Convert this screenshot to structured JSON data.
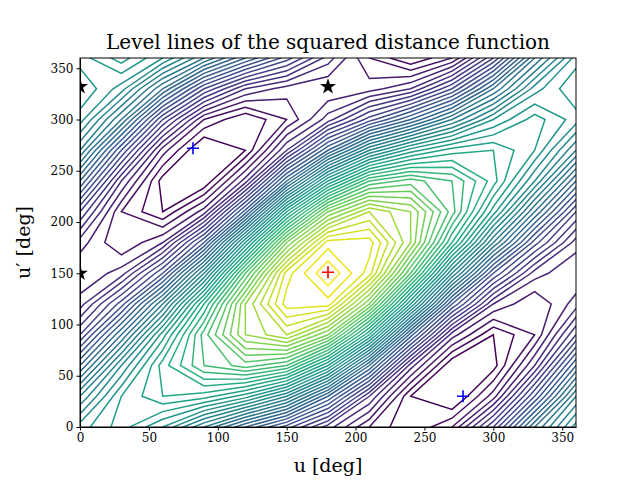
{
  "chart_data": {
    "type": "contour",
    "title": "Level lines of the squared distance function",
    "x_label": "u [deg]",
    "y_label": "u′ [deg]",
    "xlim": [
      0,
      360
    ],
    "ylim": [
      0,
      360
    ],
    "xticks": [
      0,
      50,
      100,
      150,
      200,
      250,
      300,
      350
    ],
    "yticks": [
      0,
      50,
      100,
      150,
      200,
      250,
      300,
      350
    ],
    "color": "viridis",
    "x": [
      0,
      30,
      60,
      90,
      120,
      150,
      180,
      210,
      240,
      270,
      300,
      330,
      360
    ],
    "y": [
      0,
      30,
      60,
      90,
      120,
      150,
      180,
      210,
      240,
      270,
      300,
      330,
      360
    ],
    "z": [
      [
        6.1,
        6.5,
        6.0,
        5.2,
        4.4,
        3.7,
        2.9,
        2.2,
        1.8,
        2.2,
        3.4,
        5.0,
        6.1
      ],
      [
        5.4,
        6.4,
        6.8,
        6.7,
        6.3,
        5.6,
        4.4,
        3.0,
        1.8,
        1.5,
        2.3,
        3.8,
        5.4
      ],
      [
        4.4,
        5.8,
        6.9,
        7.6,
        7.9,
        7.6,
        6.4,
        4.6,
        2.7,
        1.6,
        1.7,
        2.8,
        4.4
      ],
      [
        3.4,
        4.8,
        6.3,
        7.7,
        8.8,
        9.2,
        8.4,
        6.6,
        4.3,
        2.5,
        1.8,
        2.2,
        3.4
      ],
      [
        2.7,
        3.7,
        5.2,
        7.0,
        8.8,
        9.9,
        9.9,
        8.4,
        6.2,
        4.0,
        2.6,
        2.2,
        2.7
      ],
      [
        2.4,
        2.7,
        3.8,
        5.6,
        7.8,
        9.7,
        10.4,
        9.7,
        7.8,
        5.6,
        3.8,
        2.7,
        2.4
      ],
      [
        2.7,
        2.2,
        2.6,
        4.0,
        6.2,
        8.4,
        9.9,
        9.9,
        8.8,
        7.0,
        5.2,
        3.7,
        2.7
      ],
      [
        3.4,
        2.2,
        1.8,
        2.5,
        4.3,
        6.6,
        8.4,
        9.2,
        8.8,
        7.7,
        6.3,
        4.8,
        3.4
      ],
      [
        4.4,
        2.8,
        1.7,
        1.6,
        2.7,
        4.6,
        6.4,
        7.6,
        7.9,
        7.6,
        6.9,
        5.8,
        4.4
      ],
      [
        5.4,
        3.8,
        2.3,
        1.5,
        1.8,
        3.0,
        4.4,
        5.6,
        6.3,
        6.7,
        6.8,
        6.4,
        5.4
      ],
      [
        6.1,
        5.0,
        3.4,
        2.2,
        1.8,
        2.2,
        2.9,
        3.7,
        4.4,
        5.2,
        6.0,
        6.5,
        6.1
      ],
      [
        6.4,
        5.9,
        4.8,
        3.6,
        2.8,
        2.5,
        2.4,
        2.5,
        2.8,
        3.6,
        4.8,
        5.9,
        6.4
      ],
      [
        6.1,
        6.5,
        6.0,
        5.2,
        4.4,
        3.7,
        2.9,
        2.2,
        1.8,
        2.2,
        3.4,
        5.0,
        6.1
      ]
    ],
    "levels": [
      1.8,
      2,
      2.2,
      2.4,
      2.6,
      2.8,
      3,
      3.2,
      3.4,
      3.6,
      3.8,
      4,
      4.2,
      4.4,
      4.6,
      4.8,
      5,
      5.2,
      5.4,
      5.6,
      5.8,
      6,
      6.2,
      6.4,
      6.6,
      6.8,
      7,
      7.2,
      7.4,
      7.6,
      7.8,
      8,
      8.2,
      8.4,
      8.6,
      8.8,
      9,
      9.2,
      9.4,
      9.6,
      9.8,
      10,
      10.2
    ],
    "series": [
      {
        "color": "red",
        "marker": "plus",
        "x": [
          180
        ],
        "values": [
          151
        ]
      },
      {
        "color": "blue",
        "marker": "plus",
        "x": [
          82,
          278
        ],
        "values": [
          272,
          30
        ]
      },
      {
        "color": "black",
        "marker": "star",
        "x": [
          0,
          0,
          180
        ],
        "values": [
          332,
          150,
          332
        ]
      }
    ]
  }
}
